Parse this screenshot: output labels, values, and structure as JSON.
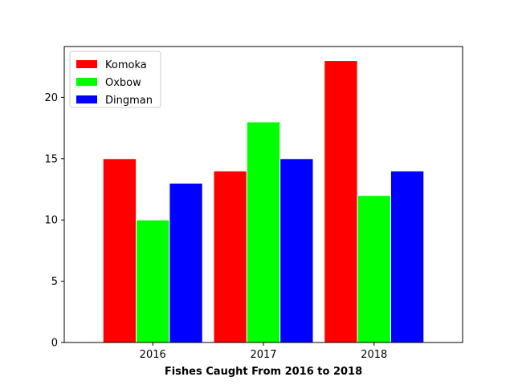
{
  "chart_data": {
    "type": "bar",
    "title": "",
    "xlabel": "Fishes Caught From 2016 to 2018",
    "ylabel": "",
    "categories": [
      "2016",
      "2017",
      "2018"
    ],
    "series": [
      {
        "name": "Komoka",
        "values": [
          15,
          14,
          23
        ],
        "color": "#ff0000"
      },
      {
        "name": "Oxbow",
        "values": [
          10,
          18,
          12
        ],
        "color": "#00ff00"
      },
      {
        "name": "Dingman",
        "values": [
          13,
          15,
          14
        ],
        "color": "#0000ff"
      }
    ],
    "ylim": [
      0,
      24.15
    ],
    "yticks": [
      0,
      5,
      10,
      15,
      20
    ],
    "legend": "upper-left",
    "grid": false
  }
}
